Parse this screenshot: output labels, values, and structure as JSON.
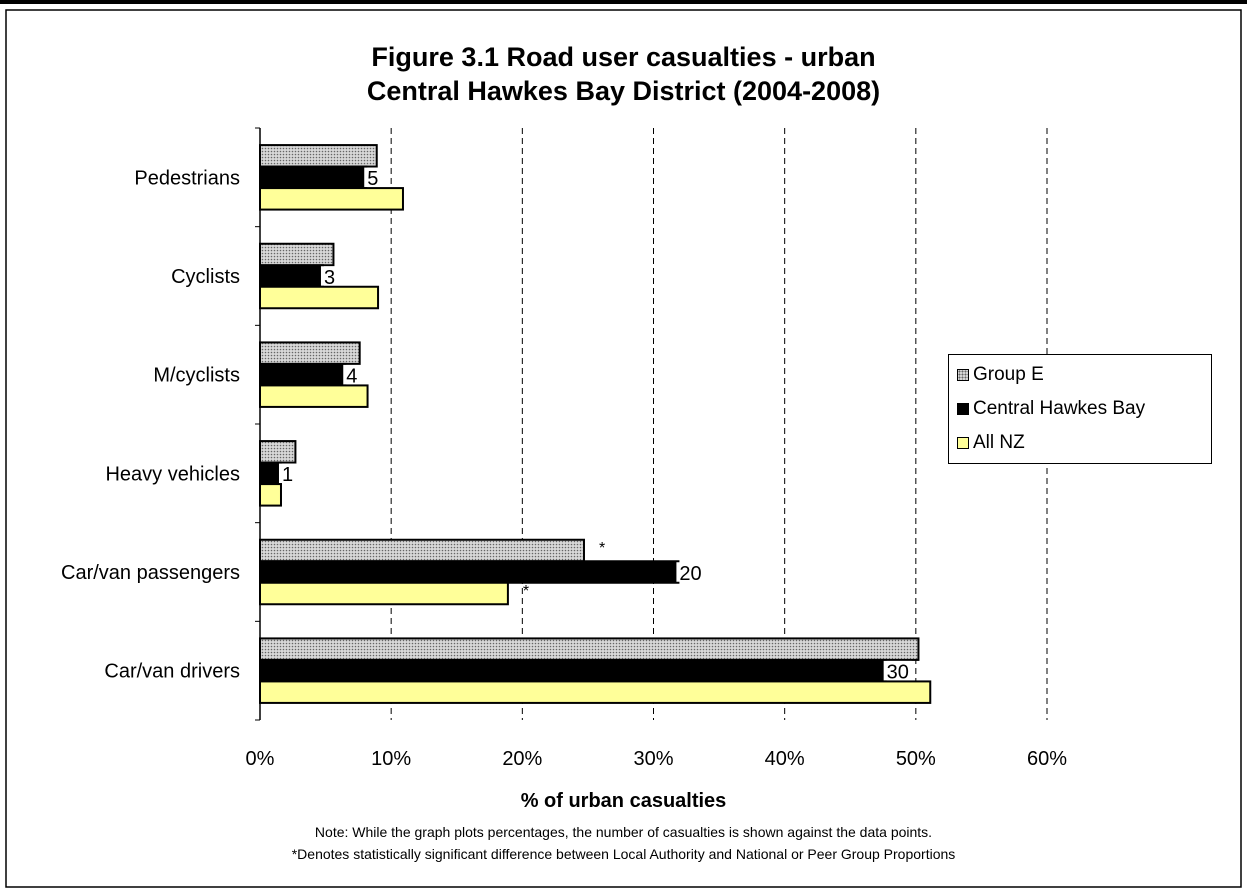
{
  "title_line1": "Figure 3.1 Road user casualties - urban",
  "title_line2": "Central Hawkes Bay District  (2004-2008)",
  "note1": "Note: While the graph plots percentages, the number of casualties is shown against the data points.",
  "note2": "*Denotes statistically significant difference between Local Authority and National or Peer Group Proportions",
  "legend": [
    "Group E",
    "Central Hawkes Bay",
    "All NZ"
  ],
  "colors": {
    "group_e": "#d8d8d8",
    "central_hawkes_bay": "#000000",
    "all_nz": "#ffff99"
  },
  "chart_data": {
    "type": "bar",
    "orientation": "horizontal",
    "categories": [
      "Pedestrians",
      "Cyclists",
      "M/cyclists",
      "Heavy vehicles",
      "Car/van passengers",
      "Car/van drivers"
    ],
    "series": [
      {
        "name": "Group E",
        "values": [
          8.9,
          5.6,
          7.6,
          2.7,
          24.7,
          50.2
        ]
      },
      {
        "name": "Central Hawkes Bay",
        "values": [
          8.1,
          4.8,
          6.5,
          1.6,
          31.9,
          47.7
        ],
        "labels": [
          "5",
          "3",
          "4",
          "1",
          "20",
          "30"
        ]
      },
      {
        "name": "All NZ",
        "values": [
          10.9,
          9.0,
          8.2,
          1.6,
          18.9,
          51.1
        ]
      }
    ],
    "significance": {
      "Group E": [
        "",
        "",
        "",
        "",
        "*",
        ""
      ],
      "All NZ": [
        "",
        "",
        "",
        "",
        "*",
        ""
      ]
    },
    "xticks": [
      "0%",
      "10%",
      "20%",
      "30%",
      "40%",
      "50%",
      "60%"
    ],
    "xlim": [
      0,
      60
    ],
    "xlabel": "% of urban casualties",
    "ylabel": "",
    "grid": "vertical dashed",
    "legend_position": "right"
  }
}
